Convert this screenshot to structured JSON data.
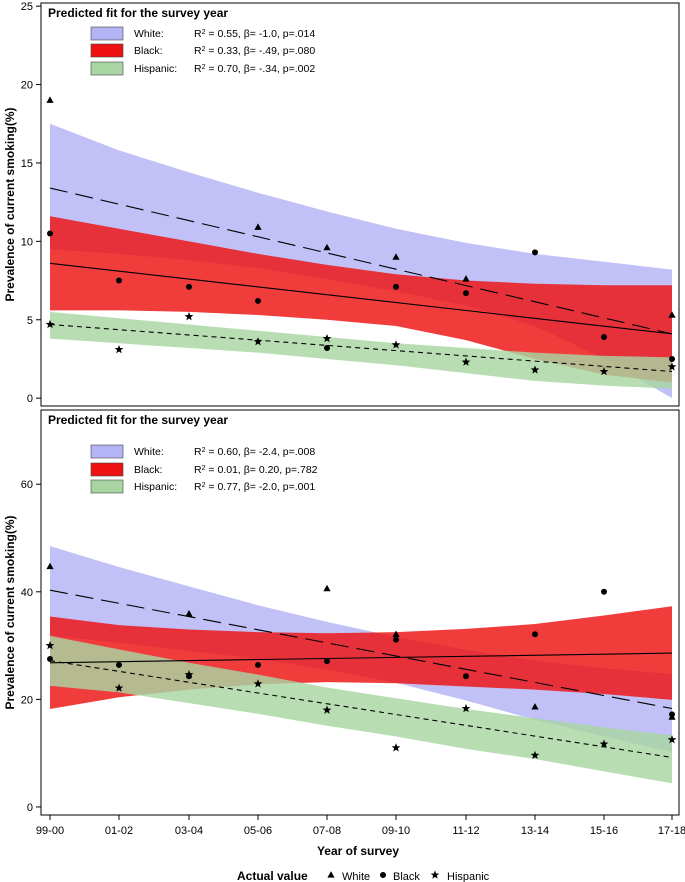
{
  "chart_data": [
    {
      "type": "line",
      "title": "Predicted fit for the survey year",
      "ylabel": "Prevalence of current smoking(%)",
      "xlabel": "",
      "categories": [
        "99-00",
        "01-02",
        "03-04",
        "05-06",
        "07-08",
        "09-10",
        "11-12",
        "13-14",
        "15-16",
        "17-18"
      ],
      "ylim": [
        -0.5,
        25.2
      ],
      "yticks": [
        0,
        5,
        10,
        15,
        20,
        25
      ],
      "grid": false,
      "legend_position": "top-left",
      "series": [
        {
          "name": "White:",
          "stats": {
            "r2": "0.55",
            "beta": "-1.0",
            "p": "p=.014"
          },
          "color": "#b3b3f5",
          "marker": "triangle",
          "line_style": "long-dash",
          "actual": [
            19.0,
            null,
            null,
            10.9,
            9.6,
            9.0,
            7.6,
            null,
            null,
            5.3
          ],
          "fit": [
            13.4,
            4.1
          ],
          "ci_upper": [
            17.5,
            15.8,
            14.4,
            13.1,
            11.9,
            10.8,
            9.9,
            9.2,
            8.7,
            8.2
          ],
          "ci_lower": [
            9.5,
            9.2,
            8.8,
            8.3,
            7.6,
            6.8,
            5.9,
            4.6,
            2.5,
            0.0
          ]
        },
        {
          "name": "Black:",
          "stats": {
            "r2": "0.33",
            "beta": "-.49",
            "p": "p=.080"
          },
          "color": "#ee1111",
          "marker": "circle",
          "line_style": "solid",
          "actual": [
            10.5,
            7.5,
            7.1,
            6.2,
            3.2,
            7.1,
            6.7,
            9.3,
            3.9,
            2.5
          ],
          "fit": [
            8.6,
            4.1
          ],
          "ci_upper": [
            11.6,
            10.8,
            10.0,
            9.2,
            8.5,
            7.9,
            7.5,
            7.3,
            7.2,
            7.2
          ],
          "ci_lower": [
            5.6,
            5.6,
            5.5,
            5.3,
            5.0,
            4.6,
            3.7,
            2.5,
            1.5,
            1.0
          ]
        },
        {
          "name": "Hispanic:",
          "stats": {
            "r2": "0.70",
            "beta": "-.34",
            "p": "p=.002"
          },
          "color": "#a8d5a2",
          "marker": "star",
          "line_style": "short-dash",
          "actual": [
            4.7,
            3.1,
            5.2,
            3.6,
            3.8,
            3.4,
            2.3,
            1.8,
            1.7,
            2.0
          ],
          "fit": [
            4.7,
            1.7
          ],
          "ci_upper": [
            5.5,
            5.1,
            4.7,
            4.3,
            3.9,
            3.5,
            3.2,
            2.9,
            2.7,
            2.6
          ],
          "ci_lower": [
            3.8,
            3.5,
            3.2,
            2.9,
            2.5,
            2.1,
            1.6,
            1.1,
            0.8,
            0.6
          ]
        }
      ]
    },
    {
      "type": "line",
      "title": "Predicted fit for the survey year",
      "ylabel": "Prevalence of current smoking(%)",
      "xlabel": "Year of survey",
      "categories": [
        "99-00",
        "01-02",
        "03-04",
        "05-06",
        "07-08",
        "09-10",
        "11-12",
        "13-14",
        "15-16",
        "17-18"
      ],
      "ylim": [
        -1.5,
        73.8
      ],
      "yticks": [
        0,
        20,
        40,
        60
      ],
      "grid": false,
      "legend_position": "top-left",
      "series": [
        {
          "name": "White:",
          "stats": {
            "r2": "0.60",
            "beta": "-2.4",
            "p": "p=.008"
          },
          "color": "#b3b3f5",
          "marker": "triangle",
          "line_style": "long-dash",
          "actual": [
            44.7,
            null,
            35.9,
            null,
            40.6,
            32.1,
            null,
            18.6,
            null,
            16.7
          ],
          "fit": [
            40.3,
            18.3
          ],
          "ci_upper": [
            48.5,
            44.6,
            41.0,
            37.5,
            34.4,
            31.6,
            29.2,
            27.2,
            25.8,
            24.7
          ],
          "ci_lower": [
            31.9,
            30.5,
            29.0,
            27.5,
            25.5,
            23.1,
            19.8,
            16.2,
            13.1,
            10.2
          ]
        },
        {
          "name": "Black:",
          "stats": {
            "r2": "0.01",
            "beta": "0.20",
            "p": "p=.782"
          },
          "color": "#ee1111",
          "marker": "circle",
          "line_style": "solid",
          "actual": [
            27.5,
            26.4,
            24.3,
            26.4,
            27.1,
            31.1,
            24.3,
            32.1,
            40.0,
            17.2
          ],
          "fit": [
            26.8,
            28.6
          ],
          "ci_upper": [
            35.4,
            33.8,
            33.0,
            32.5,
            32.3,
            32.5,
            33.1,
            34.0,
            35.6,
            37.3
          ],
          "ci_lower": [
            18.2,
            20.4,
            21.8,
            22.8,
            23.2,
            23.0,
            22.4,
            21.8,
            21.0,
            19.9
          ]
        },
        {
          "name": "Hispanic:",
          "stats": {
            "r2": "0.77",
            "beta": "-2.0",
            "p": "p=.001"
          },
          "color": "#a8d5a2",
          "marker": "star",
          "line_style": "short-dash",
          "actual": [
            30.0,
            22.1,
            24.6,
            22.9,
            18.0,
            11.0,
            18.3,
            9.6,
            11.7,
            12.5
          ],
          "fit": [
            27.2,
            9.2
          ],
          "ci_upper": [
            31.8,
            29.3,
            26.8,
            24.6,
            22.2,
            20.2,
            18.2,
            16.5,
            14.8,
            13.3
          ],
          "ci_lower": [
            22.5,
            21.3,
            19.3,
            17.3,
            15.1,
            13.1,
            10.8,
            8.9,
            6.6,
            4.4
          ]
        }
      ]
    }
  ],
  "footer": {
    "label": "Actual value",
    "entries": [
      {
        "marker": "triangle",
        "text": "White"
      },
      {
        "marker": "circle",
        "text": "Black"
      },
      {
        "marker": "star",
        "text": "Hispanic"
      }
    ]
  }
}
